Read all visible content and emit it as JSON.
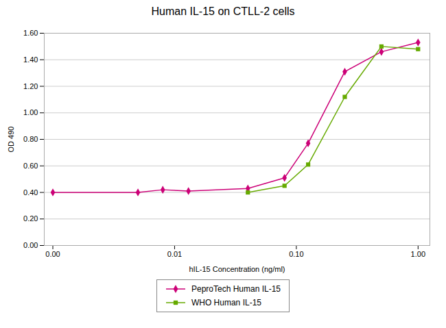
{
  "chart_data": {
    "type": "line",
    "title": "Human IL-15 on CTLL-2 cells",
    "xlabel": "hIL-15 Concentration (ng/ml)",
    "ylabel": "OD 490",
    "series": [
      {
        "name": "PeproTech Human IL-15",
        "color": "#CC0077",
        "marker": "diamond",
        "x": [
          0.001,
          0.005,
          0.008,
          0.013,
          0.04,
          0.08,
          0.125,
          0.25,
          0.5,
          1.0
        ],
        "values": [
          0.4,
          0.4,
          0.42,
          0.41,
          0.43,
          0.51,
          0.77,
          1.31,
          1.46,
          1.53
        ]
      },
      {
        "name": "WHO Human IL-15",
        "color": "#66AA00",
        "marker": "square",
        "x": [
          0.04,
          0.08,
          0.125,
          0.25,
          0.5,
          1.0
        ],
        "values": [
          0.4,
          0.45,
          0.61,
          1.12,
          1.5,
          1.48
        ]
      }
    ],
    "log": "x",
    "xlim": [
      0.00085,
      1.25
    ],
    "xticks": [
      {
        "value": 0.001,
        "label": "0.00"
      },
      0.01,
      {
        "value": 0.1,
        "label": "0.10"
      },
      {
        "value": 1.0,
        "label": "1.00"
      }
    ],
    "ylim": [
      0.0,
      1.6
    ],
    "yticks": [
      {
        "value": 0.0,
        "label": "0.00"
      },
      {
        "value": 0.2,
        "label": "0.20"
      },
      {
        "value": 0.4,
        "label": "0.40"
      },
      {
        "value": 0.6,
        "label": "0.60"
      },
      {
        "value": 0.8,
        "label": "0.80"
      },
      {
        "value": 1.0,
        "label": "1.00"
      },
      {
        "value": 1.2,
        "label": "1.20"
      },
      {
        "value": 1.4,
        "label": "1.40"
      },
      {
        "value": 1.6,
        "label": "1.60"
      }
    ],
    "grid": true,
    "legend": "bottom"
  }
}
